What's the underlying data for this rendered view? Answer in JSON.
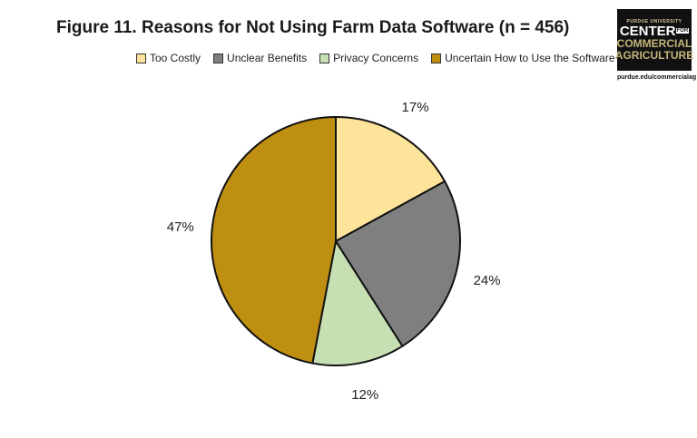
{
  "chart_data": {
    "type": "pie",
    "title": "Figure 11. Reasons for Not Using Farm Data Software (n = 456)",
    "categories": [
      "Too Costly",
      "Unclear Benefits",
      "Privacy Concerns",
      "Uncertain How to Use the Software"
    ],
    "values": [
      17,
      24,
      12,
      47
    ],
    "labels": [
      "17%",
      "24%",
      "12%",
      "47%"
    ],
    "colors": [
      "#FDE49A",
      "#7F7F7F",
      "#C6E0B4",
      "#BF8F12"
    ],
    "legend_position": "top"
  },
  "logo": {
    "top_text": "PURDUE UNIVERSITY",
    "center_text": "CENTER",
    "for_text": "FOR",
    "commercial_text": "COMMERCIAL",
    "agriculture_text": "AGRICULTURE",
    "url": "purdue.edu/commercialag"
  }
}
